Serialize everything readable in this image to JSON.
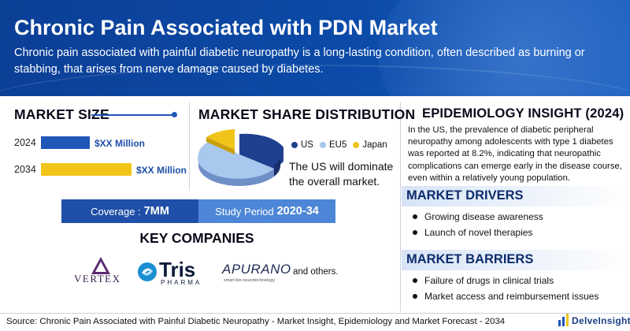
{
  "header": {
    "title": "Chronic Pain Associated with PDN Market",
    "subtitle": "Chronic pain associated with painful diabetic neuropathy is a long-lasting condition, often described as burning or stabbing, that arises from nerve damage caused by diabetes."
  },
  "market_size": {
    "heading": "MARKET SIZE",
    "rows": [
      {
        "year": "2024",
        "value_label": "$XX Million",
        "relative": 0.54
      },
      {
        "year": "2034",
        "value_label": "$XX Million",
        "relative": 1.0
      }
    ],
    "colors": {
      "y2024": "#1f57b7",
      "y2034": "#f0c419"
    }
  },
  "market_share": {
    "heading": "MARKET SHARE DISTRIBUTION",
    "legend": [
      "US",
      "EU5",
      "Japan"
    ],
    "legend_colors": [
      "#1f3f8f",
      "#a8c8ee",
      "#f0c419"
    ],
    "text": "The US will dominate the overall market."
  },
  "coverage": {
    "label": "Coverage :",
    "value": "7MM"
  },
  "study_period": {
    "label": "Study Period",
    "value": "2020-34"
  },
  "key_companies": {
    "heading": "KEY COMPANIES",
    "logos": {
      "vertex": "VERTEX",
      "tris_main": "Tris",
      "tris_sub": "PHARMA",
      "apurano": "APURANO",
      "apurano_sub": "smart bio-neurotechnology"
    },
    "others": "and others."
  },
  "epidemiology": {
    "heading": "EPIDEMIOLOGY INSIGHT (2024)",
    "text": "In the US, the prevalence of diabetic peripheral neuropathy among adolescents with type 1 diabetes was reported at 8.2%, indicating that neuropathic complications can emerge early in the disease course, even within a relatively young population."
  },
  "drivers": {
    "heading": "MARKET DRIVERS",
    "items": [
      "Growing disease awareness",
      "Launch of novel therapies"
    ]
  },
  "barriers": {
    "heading": "MARKET BARRIERS",
    "items": [
      "Failure of drugs in clinical trials",
      "Market access and reimbursement issues"
    ]
  },
  "footer": {
    "source": "Source: Chronic Pain Associated with Painful Diabetic Neuropathy - Market Insight, Epidemiology and Market Forecast - 2034",
    "brand": "DelveInsight"
  },
  "colors": {
    "primary": "#1f57b7",
    "accent": "#f0c419",
    "header_bg": "#0c3f96"
  }
}
